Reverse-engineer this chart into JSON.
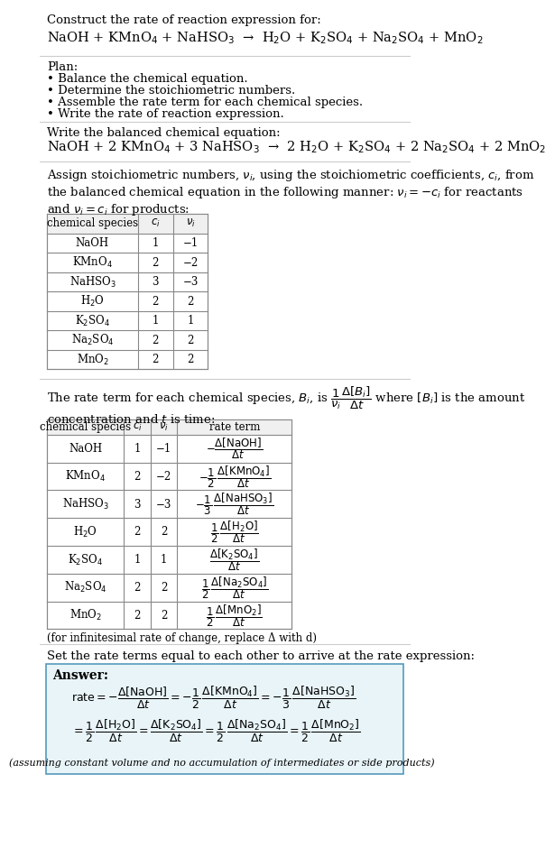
{
  "bg_color": "#ffffff",
  "title_text": "Construct the rate of reaction expression for:",
  "reaction_unbalanced": "NaOH + KMnO$_4$ + NaHSO$_3$  →  H$_2$O + K$_2$SO$_4$ + Na$_2$SO$_4$ + MnO$_2$",
  "plan_header": "Plan:",
  "plan_items": [
    "• Balance the chemical equation.",
    "• Determine the stoichiometric numbers.",
    "• Assemble the rate term for each chemical species.",
    "• Write the rate of reaction expression."
  ],
  "balanced_header": "Write the balanced chemical equation:",
  "reaction_balanced": "NaOH + 2 KMnO$_4$ + 3 NaHSO$_3$  →  2 H$_2$O + K$_2$SO$_4$ + 2 Na$_2$SO$_4$ + 2 MnO$_2$",
  "stoich_header": "Assign stoichiometric numbers, $\\nu_i$, using the stoichiometric coefficients, $c_i$, from\nthe balanced chemical equation in the following manner: $\\nu_i = -c_i$ for reactants\nand $\\nu_i = c_i$ for products:",
  "table1_cols": [
    "chemical species",
    "$c_i$",
    "$\\nu_i$"
  ],
  "table1_data": [
    [
      "NaOH",
      "1",
      "−1"
    ],
    [
      "KMnO$_4$",
      "2",
      "−2"
    ],
    [
      "NaHSO$_3$",
      "3",
      "−3"
    ],
    [
      "H$_2$O",
      "2",
      "2"
    ],
    [
      "K$_2$SO$_4$",
      "1",
      "1"
    ],
    [
      "Na$_2$SO$_4$",
      "2",
      "2"
    ],
    [
      "MnO$_2$",
      "2",
      "2"
    ]
  ],
  "rate_term_header": "The rate term for each chemical species, $B_i$, is $\\dfrac{1}{\\nu_i}\\dfrac{\\Delta[B_i]}{\\Delta t}$ where $[B_i]$ is the amount\nconcentration and $t$ is time:",
  "table2_cols": [
    "chemical species",
    "$c_i$",
    "$\\nu_i$",
    "rate term"
  ],
  "table2_data": [
    [
      "NaOH",
      "1",
      "−1",
      "$-\\dfrac{\\Delta[\\mathrm{NaOH}]}{\\Delta t}$"
    ],
    [
      "KMnO$_4$",
      "2",
      "−2",
      "$-\\dfrac{1}{2}\\,\\dfrac{\\Delta[\\mathrm{KMnO_4}]}{\\Delta t}$"
    ],
    [
      "NaHSO$_3$",
      "3",
      "−3",
      "$-\\dfrac{1}{3}\\,\\dfrac{\\Delta[\\mathrm{NaHSO_3}]}{\\Delta t}$"
    ],
    [
      "H$_2$O",
      "2",
      "2",
      "$\\dfrac{1}{2}\\,\\dfrac{\\Delta[\\mathrm{H_2O}]}{\\Delta t}$"
    ],
    [
      "K$_2$SO$_4$",
      "1",
      "1",
      "$\\dfrac{\\Delta[\\mathrm{K_2SO_4}]}{\\Delta t}$"
    ],
    [
      "Na$_2$SO$_4$",
      "2",
      "2",
      "$\\dfrac{1}{2}\\,\\dfrac{\\Delta[\\mathrm{Na_2SO_4}]}{\\Delta t}$"
    ],
    [
      "MnO$_2$",
      "2",
      "2",
      "$\\dfrac{1}{2}\\,\\dfrac{\\Delta[\\mathrm{MnO_2}]}{\\Delta t}$"
    ]
  ],
  "infinitesimal_note": "(for infinitesimal rate of change, replace Δ with d)",
  "set_equal_header": "Set the rate terms equal to each other to arrive at the rate expression:",
  "answer_box_color": "#e8f4f8",
  "answer_box_border": "#5599bb",
  "answer_label": "Answer:",
  "answer_line1": "$\\mathrm{rate} = -\\dfrac{\\Delta[\\mathrm{NaOH}]}{\\Delta t} = -\\dfrac{1}{2}\\,\\dfrac{\\Delta[\\mathrm{KMnO_4}]}{\\Delta t} = -\\dfrac{1}{3}\\,\\dfrac{\\Delta[\\mathrm{NaHSO_3}]}{\\Delta t}$",
  "answer_line2": "$= \\dfrac{1}{2}\\,\\dfrac{\\Delta[\\mathrm{H_2O}]}{\\Delta t} = \\dfrac{\\Delta[\\mathrm{K_2SO_4}]}{\\Delta t} = \\dfrac{1}{2}\\,\\dfrac{\\Delta[\\mathrm{Na_2SO_4}]}{\\Delta t} = \\dfrac{1}{2}\\,\\dfrac{\\Delta[\\mathrm{MnO_2}]}{\\Delta t}$",
  "answer_note": "(assuming constant volume and no accumulation of intermediates or side products)"
}
